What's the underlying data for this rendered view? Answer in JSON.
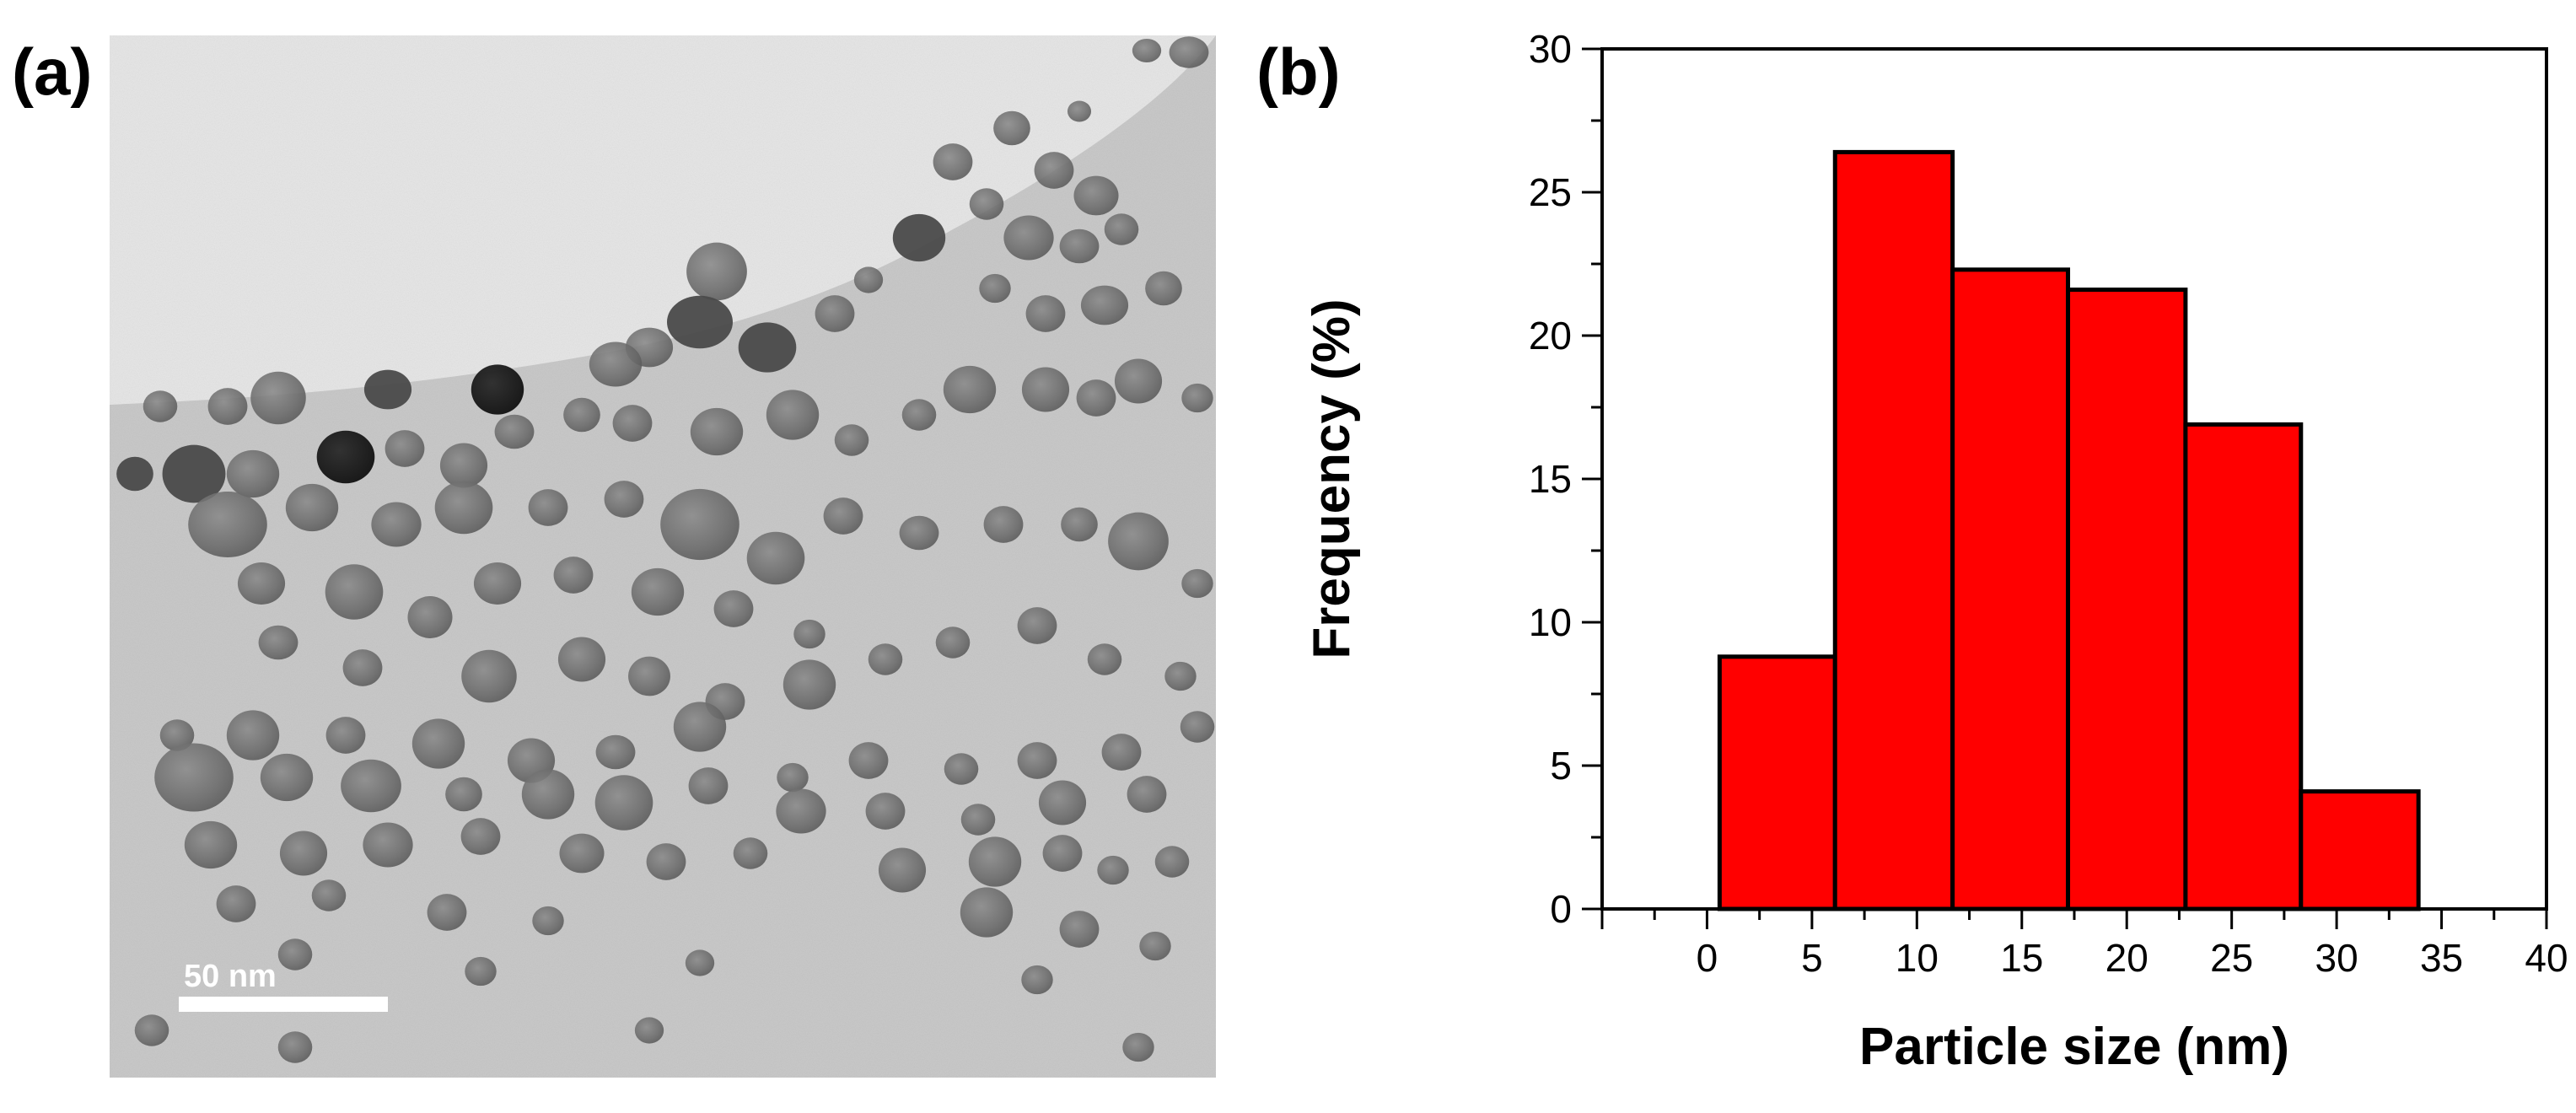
{
  "panels": {
    "a": {
      "label": "(a)",
      "scale_bar": {
        "text": "50 nm"
      }
    },
    "b": {
      "label": "(b)"
    }
  },
  "chart_data": {
    "type": "bar",
    "title": "",
    "xlabel": "Particle size (nm)",
    "ylabel": "Frequency (%)",
    "xlim": [
      -5,
      40
    ],
    "ylim": [
      0,
      30
    ],
    "xticks": [
      0,
      5,
      10,
      15,
      20,
      25,
      30,
      35,
      40
    ],
    "yticks": [
      0,
      5,
      10,
      15,
      20,
      25,
      30
    ],
    "grid": false,
    "bar_color": "#ff0000",
    "bar_edge_color": "#000000",
    "bins": [
      {
        "start": 0.6,
        "end": 6.1,
        "value": 8.8
      },
      {
        "start": 6.1,
        "end": 11.7,
        "value": 26.4
      },
      {
        "start": 11.7,
        "end": 17.2,
        "value": 22.3
      },
      {
        "start": 17.2,
        "end": 22.8,
        "value": 21.6
      },
      {
        "start": 22.8,
        "end": 28.3,
        "value": 16.9
      },
      {
        "start": 28.3,
        "end": 33.9,
        "value": 4.1
      }
    ]
  }
}
